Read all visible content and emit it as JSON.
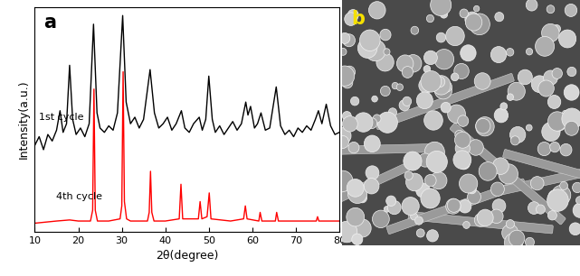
{
  "chart_data": {
    "type": "line",
    "title": "a",
    "x_label": "2θ(degree)",
    "y_label": "Intensity(a.u.)",
    "xlim": [
      10,
      80
    ],
    "xticks": [
      10,
      20,
      30,
      40,
      50,
      60,
      70,
      80
    ],
    "ylim": [
      0,
      104
    ],
    "tick_labels": "x",
    "series": [
      {
        "name": "1st cycle",
        "color": "#000000",
        "x": [
          10,
          11,
          12,
          13,
          14,
          15,
          15.8,
          16.5,
          17.3,
          18,
          18.7,
          19.5,
          20.5,
          21.5,
          22.5,
          23.5,
          24.3,
          25,
          26,
          27,
          28,
          29,
          30.2,
          31,
          32,
          33,
          34,
          35,
          36.5,
          37.5,
          38.5,
          39.5,
          40.5,
          41.5,
          42.5,
          43.7,
          44.5,
          45.5,
          46.5,
          47.8,
          48.5,
          49.3,
          50,
          50.8,
          51.5,
          52.5,
          53.5,
          54.5,
          55.5,
          56.5,
          57.5,
          58.5,
          59,
          59.6,
          60.5,
          61.2,
          62,
          63,
          64,
          65.5,
          66.5,
          67.5,
          68.5,
          69.5,
          70.5,
          71.5,
          72.5,
          73.5,
          74.5,
          75.2,
          76,
          77,
          78,
          79,
          80
        ],
        "values": [
          40,
          44,
          38,
          45,
          42,
          47,
          56,
          46,
          50,
          77,
          52,
          45,
          48,
          44,
          50,
          96,
          55,
          48,
          46,
          49,
          47,
          55,
          100,
          60,
          50,
          53,
          48,
          52,
          75,
          55,
          48,
          50,
          53,
          47,
          50,
          56,
          48,
          46,
          50,
          53,
          47,
          52,
          72,
          52,
          46,
          49,
          45,
          48,
          51,
          47,
          50,
          60,
          54,
          58,
          48,
          50,
          55,
          47,
          48,
          67,
          49,
          45,
          47,
          44,
          48,
          46,
          49,
          47,
          52,
          56,
          50,
          59,
          49,
          45,
          46
        ]
      },
      {
        "name": "4th cycle",
        "color": "#ff0000",
        "x": [
          10,
          15,
          18,
          20,
          22.8,
          23.3,
          23.6,
          23.9,
          24.4,
          27,
          29.6,
          30.0,
          30.3,
          30.6,
          31.1,
          32,
          35.9,
          36.3,
          36.6,
          36.9,
          37.4,
          40,
          43.2,
          43.6,
          44,
          47.6,
          48,
          48.4,
          49.6,
          50.1,
          50.5,
          55,
          58,
          58.4,
          58.8,
          61.5,
          61.8,
          62.2,
          65.3,
          65.6,
          66,
          70,
          74.7,
          75,
          75.3,
          80
        ],
        "values": [
          4,
          5,
          5.5,
          5,
          5,
          10,
          66,
          10,
          5,
          5,
          6,
          12,
          74,
          14,
          6,
          5,
          5,
          9,
          28,
          9,
          5,
          5,
          6,
          22,
          6,
          6,
          14,
          6,
          7,
          18,
          6,
          5,
          6,
          12,
          6,
          5,
          9,
          5,
          5,
          9,
          5,
          5,
          5,
          7,
          5,
          5
        ]
      }
    ]
  },
  "image_panel": {
    "label": "b"
  }
}
